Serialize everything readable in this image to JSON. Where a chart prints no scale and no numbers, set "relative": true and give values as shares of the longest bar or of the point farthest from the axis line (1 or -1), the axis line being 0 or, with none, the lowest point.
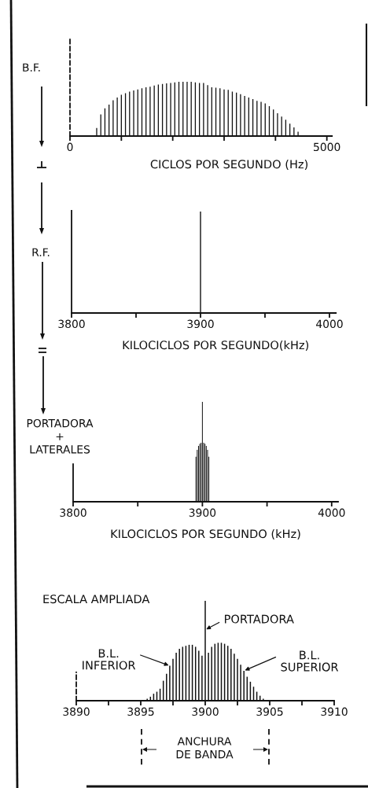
{
  "chart_data": [
    {
      "type": "bar",
      "relative": true,
      "color": "#111111",
      "x": [
        520,
        600,
        680,
        760,
        840,
        920,
        1000,
        1080,
        1160,
        1240,
        1320,
        1400,
        1480,
        1560,
        1640,
        1720,
        1800,
        1880,
        1960,
        2040,
        2120,
        2200,
        2280,
        2360,
        2440,
        2520,
        2600,
        2680,
        2760,
        2840,
        2920,
        3000,
        3080,
        3160,
        3240,
        3320,
        3400,
        3480,
        3560,
        3640,
        3720,
        3800,
        3880,
        3960,
        4040,
        4120,
        4200,
        4280,
        4360,
        4440
      ],
      "values": [
        0.15,
        0.4,
        0.51,
        0.58,
        0.66,
        0.71,
        0.76,
        0.79,
        0.82,
        0.84,
        0.86,
        0.88,
        0.9,
        0.91,
        0.93,
        0.95,
        0.96,
        0.97,
        0.98,
        0.99,
        1,
        1,
        1,
        1,
        0.99,
        0.98,
        0.98,
        0.94,
        0.9,
        0.89,
        0.88,
        0.86,
        0.85,
        0.82,
        0.8,
        0.77,
        0.74,
        0.71,
        0.68,
        0.65,
        0.63,
        0.6,
        0.55,
        0.49,
        0.42,
        0.36,
        0.3,
        0.23,
        0.16,
        0.08
      ],
      "xlim": [
        0,
        5100
      ],
      "xticks": [
        0,
        {
          "value": 1000,
          "label": null
        },
        {
          "value": 2000,
          "label": null
        },
        {
          "value": 3000,
          "label": null
        },
        {
          "value": 4000,
          "label": null
        },
        5000
      ],
      "xlabel": "CICLOS POR SEGUNDO (Hz)",
      "annotations": [
        "B.F."
      ]
    },
    {
      "type": "bar",
      "relative": true,
      "color": "#111111",
      "x": [
        3900
      ],
      "values": [
        1
      ],
      "xlim": [
        3800,
        4005
      ],
      "xticks": [
        3800,
        {
          "value": 3850,
          "label": null
        },
        3900,
        {
          "value": 3950,
          "label": null
        },
        4000
      ],
      "xlabel": "KILOCICLOS POR SEGUNDO(kHz)",
      "annotations": [
        "R.F."
      ]
    },
    {
      "type": "bar",
      "relative": true,
      "color": "#111111",
      "x": [
        3895,
        3896,
        3897,
        3898,
        3899,
        3900,
        3901,
        3902,
        3903,
        3904,
        3905
      ],
      "values": [
        0.45,
        0.52,
        0.56,
        0.58,
        0.59,
        1,
        0.59,
        0.58,
        0.56,
        0.52,
        0.45
      ],
      "xlim": [
        3800,
        4005
      ],
      "xticks": [
        3800,
        {
          "value": 3850,
          "label": null
        },
        3900,
        {
          "value": 3950,
          "label": null
        },
        4000
      ],
      "xlabel": "KILOCICLOS POR SEGUNDO (kHz)",
      "annotations": [
        "PORTADORA\n+\nLATERALES"
      ]
    },
    {
      "type": "bar",
      "relative": true,
      "color": "#111111",
      "title": "ESCALA AMPLIADA",
      "x": [
        3895.5,
        3895.75,
        3896,
        3896.25,
        3896.5,
        3896.75,
        3897,
        3897.25,
        3897.5,
        3897.75,
        3898,
        3898.25,
        3898.5,
        3898.75,
        3899,
        3899.25,
        3899.5,
        3899.75,
        3900,
        3900.25,
        3900.5,
        3900.75,
        3901,
        3901.25,
        3901.5,
        3901.75,
        3902,
        3902.25,
        3902.5,
        3902.75,
        3903,
        3903.25,
        3903.5,
        3903.75,
        3904,
        3904.25,
        3904.5
      ],
      "values": [
        0.02,
        0.04,
        0.07,
        0.09,
        0.12,
        0.2,
        0.27,
        0.35,
        0.42,
        0.48,
        0.52,
        0.54,
        0.55,
        0.56,
        0.56,
        0.54,
        0.5,
        0.45,
        1,
        0.48,
        0.54,
        0.57,
        0.58,
        0.58,
        0.57,
        0.55,
        0.52,
        0.47,
        0.42,
        0.36,
        0.3,
        0.24,
        0.19,
        0.14,
        0.09,
        0.05,
        0.02
      ],
      "xlim": [
        3890,
        3910
      ],
      "xticks": [
        3890,
        {
          "value": 3892.5,
          "label": null
        },
        3895,
        {
          "value": 3897.5,
          "label": null
        },
        3900,
        {
          "value": 3902.5,
          "label": null
        },
        3905,
        {
          "value": 3907.5,
          "label": null
        },
        3910
      ],
      "annotations": [
        {
          "text": "PORTADORA",
          "x": 3900,
          "y": 0.71
        },
        {
          "text": "B.L.\nINFERIOR",
          "x": 3897.25,
          "y": 0.35
        },
        {
          "text": "B.L.\nSUPERIOR",
          "x": 3903.0,
          "y": 0.3
        },
        "ANCHURA\nDE BANDA"
      ]
    }
  ]
}
